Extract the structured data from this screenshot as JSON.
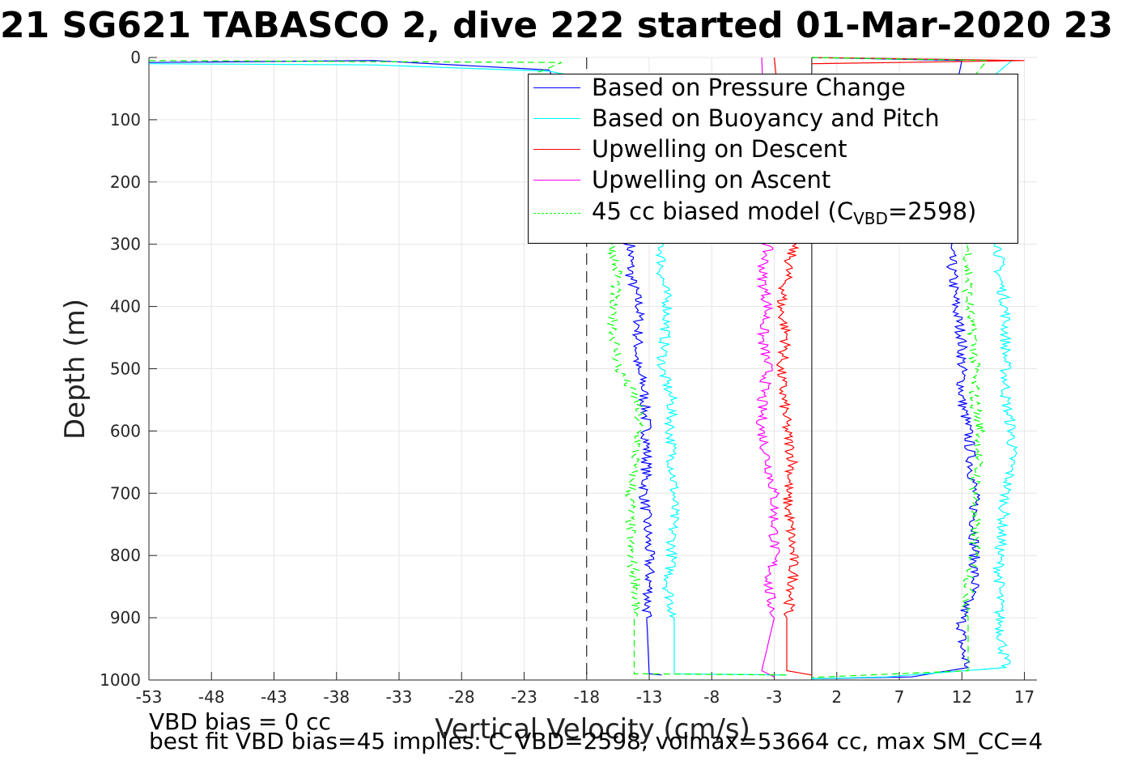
{
  "chart_data": {
    "type": "line",
    "title": "21 SG621 TABASCO 2, dive 222 started 01-Mar-2020 23",
    "xlabel": "Vertical Velocity (cm/s)",
    "ylabel": "Depth (m)",
    "xlim": [
      -53,
      18
    ],
    "ylim": [
      1000,
      0
    ],
    "y_reversed": true,
    "grid": true,
    "x_ticks": [
      "-53",
      "-48",
      "-43",
      "-38",
      "-33",
      "-28",
      "-23",
      "-18",
      "-13",
      "-8",
      "-3",
      "2",
      "7",
      "12",
      "17"
    ],
    "y_ticks": [
      "0",
      "100",
      "200",
      "300",
      "400",
      "500",
      "600",
      "700",
      "800",
      "900",
      "1000"
    ],
    "vertical_lines": [
      {
        "x": -18,
        "style": "dashed",
        "color": "#000000"
      },
      {
        "x": 0,
        "style": "solid",
        "color": "#000000"
      }
    ],
    "legend_position": "top-right",
    "series": [
      {
        "name": "Based on Pressure Change",
        "color": "#0000ff",
        "style": "solid",
        "segments": [
          {
            "x": [
              -53,
              -35,
              -21,
              -14.5,
              -14.5,
              -13.8,
              -14,
              -13.5,
              -13.2,
              -13.2,
              -13.4,
              -13,
              -13,
              -13.2,
              -13,
              -12
            ],
            "y": [
              8,
              5,
              20,
              300,
              350,
              400,
              500,
              520,
              600,
              650,
              700,
              800,
              850,
              900,
              990,
              992
            ]
          },
          {
            "x": [
              0,
              12,
              11,
              11,
              11.5,
              12,
              12,
              12.5,
              13,
              13,
              13,
              12.5,
              12,
              12,
              12.5,
              8,
              0
            ],
            "y": [
              0,
              5,
              100,
              300,
              400,
              450,
              550,
              600,
              700,
              800,
              850,
              870,
              900,
              950,
              980,
              995,
              998
            ]
          }
        ]
      },
      {
        "name": "Based on Buoyancy and Pitch",
        "color": "#00ffff",
        "style": "solid",
        "segments": [
          {
            "x": [
              -53,
              -35,
              -21,
              -19,
              -12,
              -12,
              -11.5,
              -12,
              -11.2,
              -11.3,
              -11,
              -11.2,
              -11.5,
              -11,
              -11,
              -2
            ],
            "y": [
              10,
              12,
              22,
              30,
              300,
              350,
              400,
              500,
              550,
              600,
              700,
              800,
              850,
              900,
              990,
              992
            ]
          },
          {
            "x": [
              0,
              16,
              14.5,
              15,
              15,
              15.5,
              15.5,
              15.5,
              16,
              16,
              15.5,
              15,
              15,
              15,
              15.5,
              6,
              0
            ],
            "y": [
              0,
              5,
              30,
              300,
              350,
              400,
              500,
              550,
              600,
              650,
              700,
              800,
              850,
              900,
              980,
              995,
              998
            ]
          }
        ]
      },
      {
        "name": "Upwelling on Descent",
        "color": "#ff0000",
        "style": "solid",
        "segments": [
          {
            "x": [
              -3,
              -1.5,
              -2,
              -2.5,
              -2,
              -2.5,
              -2,
              -1.5,
              -2,
              -1.5,
              -1.5,
              -2,
              -2,
              0
            ],
            "y": [
              0,
              300,
              350,
              400,
              450,
              500,
              600,
              650,
              700,
              800,
              850,
              900,
              985,
              992
            ]
          },
          {
            "x": [
              0,
              17,
              0
            ],
            "y": [
              0,
              5,
              10
            ]
          }
        ]
      },
      {
        "name": "Upwelling on Ascent",
        "color": "#ff00ff",
        "style": "solid",
        "segments": [
          {
            "x": [
              -4,
              -3.5,
              -4,
              -3.5,
              -4,
              -3.5,
              -4,
              -4,
              -3,
              -3,
              -3,
              -3.5,
              -3,
              -4,
              -3
            ],
            "y": [
              0,
              300,
              350,
              400,
              450,
              500,
              550,
              600,
              700,
              750,
              800,
              850,
              900,
              985,
              995
            ]
          }
        ]
      },
      {
        "name": "45 cc biased model (CVBD=2598)",
        "color": "#00ff00",
        "style": "dashed",
        "segments": [
          {
            "x": [
              -53,
              -20,
              -22,
              -16,
              -15.5,
              -16,
              -15.5,
              -14,
              -13.8,
              -14.5,
              -14.5,
              -14,
              -14.2,
              -14.2,
              -2
            ],
            "y": [
              5,
              8,
              25,
              300,
              350,
              400,
              500,
              550,
              600,
              700,
              800,
              850,
              900,
              990,
              992
            ]
          },
          {
            "x": [
              0,
              14,
              13,
              12.5,
              12.5,
              13,
              13,
              13.5,
              13,
              13,
              12.5,
              12.5,
              12.5,
              0
            ],
            "y": [
              0,
              5,
              30,
              300,
              400,
              450,
              550,
              600,
              700,
              800,
              850,
              900,
              985,
              996
            ]
          }
        ]
      }
    ]
  },
  "notes": {
    "vbd_bias": "VBD bias = 0 cc",
    "best_fit": "best fit VBD bias=45 implies: C_VBD=2598, volmax=53664 cc, max SM_CC=4"
  },
  "legend": {
    "items": [
      {
        "label": "Based on Pressure Change",
        "color": "#0000ff"
      },
      {
        "label": "Based on Buoyancy and Pitch",
        "color": "#00ffff"
      },
      {
        "label": "Upwelling on Descent",
        "color": "#ff0000"
      },
      {
        "label": "Upwelling on Ascent",
        "color": "#ff00ff"
      }
    ],
    "model_prefix": "45 cc biased model (C",
    "model_sub": "VBD",
    "model_suffix": "=2598)"
  }
}
